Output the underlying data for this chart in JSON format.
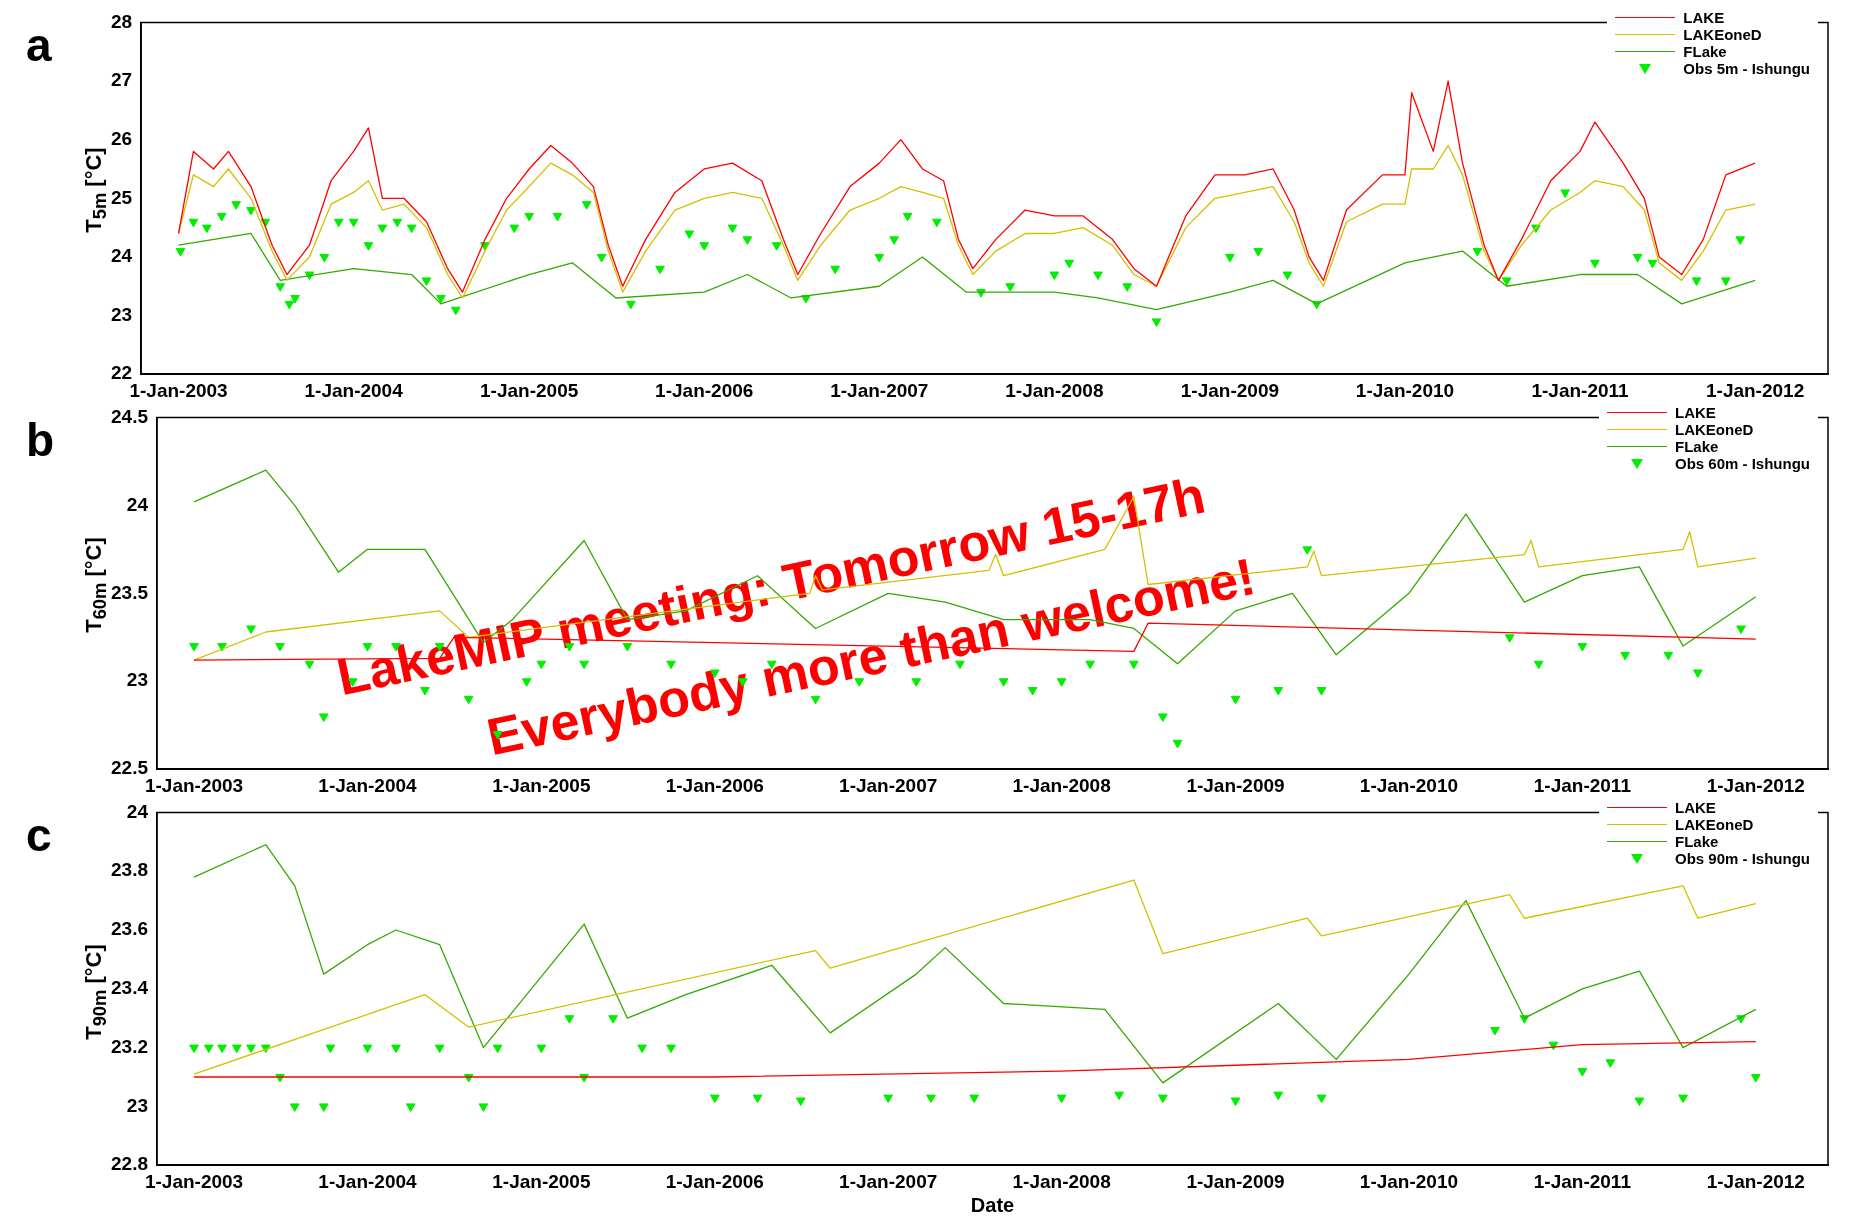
{
  "chart_data": [
    {
      "type": "line",
      "title": "a",
      "ylabel": "T$_{5m}$ [°C]",
      "xlim": [
        "2002-10-15",
        "2012-06-01"
      ],
      "ylim": [
        22,
        28
      ],
      "yticks": [
        22,
        23,
        24,
        25,
        26,
        27,
        28
      ],
      "xticks": [
        {
          "value": "2003-01-01",
          "label": "1-Jan-2003"
        },
        {
          "value": "2004-01-01",
          "label": "1-Jan-2004"
        },
        {
          "value": "2005-01-01",
          "label": "1-Jan-2005"
        },
        {
          "value": "2006-01-01",
          "label": "1-Jan-2006"
        },
        {
          "value": "2007-01-01",
          "label": "1-Jan-2007"
        },
        {
          "value": "2008-01-01",
          "label": "1-Jan-2008"
        },
        {
          "value": "2009-01-01",
          "label": "1-Jan-2009"
        },
        {
          "value": "2010-01-01",
          "label": "1-Jan-2010"
        },
        {
          "value": "2011-01-01",
          "label": "1-Jan-2011"
        },
        {
          "value": "2012-01-01",
          "label": "1-Jan-2012"
        }
      ],
      "legend": "top right",
      "grid": false,
      "series": [
        {
          "name": "LAKE",
          "color": "#ff0000",
          "x": [
            "2003-01-01",
            "2003-02-01",
            "2003-03-15",
            "2003-04-15",
            "2003-06-01",
            "2003-07-15",
            "2003-08-15",
            "2003-10-01",
            "2003-11-15",
            "2004-01-01",
            "2004-02-01",
            "2004-03-01",
            "2004-04-15",
            "2004-06-01",
            "2004-07-15",
            "2004-08-15",
            "2004-10-01",
            "2004-11-15",
            "2005-01-01",
            "2005-02-15",
            "2005-04-01",
            "2005-05-15",
            "2005-06-15",
            "2005-07-15",
            "2005-09-01",
            "2005-11-01",
            "2006-01-01",
            "2006-03-01",
            "2006-05-01",
            "2006-06-15",
            "2006-07-15",
            "2006-09-01",
            "2006-11-01",
            "2007-01-01",
            "2007-02-15",
            "2007-04-01",
            "2007-05-15",
            "2007-06-15",
            "2007-07-15",
            "2007-09-01",
            "2007-11-01",
            "2008-01-01",
            "2008-03-01",
            "2008-05-01",
            "2008-06-15",
            "2008-08-01",
            "2008-10-01",
            "2008-12-01",
            "2009-02-01",
            "2009-04-01",
            "2009-05-15",
            "2009-06-15",
            "2009-07-15",
            "2009-09-01",
            "2009-11-15",
            "2010-01-01",
            "2010-01-15",
            "2010-03-01",
            "2010-04-01",
            "2010-05-01",
            "2010-06-15",
            "2010-07-15",
            "2010-09-01",
            "2010-11-01",
            "2011-01-01",
            "2011-02-01",
            "2011-04-01",
            "2011-05-15",
            "2011-06-15",
            "2011-08-01",
            "2011-09-15",
            "2011-11-01",
            "2012-01-01"
          ],
          "values": [
            24.4,
            25.8,
            25.5,
            25.8,
            25.2,
            24.2,
            23.7,
            24.2,
            25.3,
            25.8,
            26.2,
            25.0,
            25.0,
            24.6,
            23.8,
            23.4,
            24.3,
            25.0,
            25.5,
            25.9,
            25.6,
            25.2,
            24.2,
            23.5,
            24.3,
            25.1,
            25.5,
            25.6,
            25.3,
            24.3,
            23.7,
            24.4,
            25.2,
            25.6,
            26.0,
            25.5,
            25.3,
            24.3,
            23.8,
            24.3,
            24.8,
            24.7,
            24.7,
            24.3,
            23.8,
            23.5,
            24.7,
            25.4,
            25.4,
            25.5,
            24.8,
            24.0,
            23.6,
            24.8,
            25.4,
            25.4,
            26.8,
            25.8,
            27.0,
            25.6,
            24.2,
            23.6,
            24.3,
            25.3,
            25.8,
            26.3,
            25.6,
            25.0,
            24.0,
            23.7,
            24.3,
            25.4,
            25.6
          ]
        },
        {
          "name": "LAKEoneD",
          "color": "#d4c000",
          "x": [
            "2003-01-01",
            "2003-02-01",
            "2003-03-15",
            "2003-04-15",
            "2003-06-01",
            "2003-07-15",
            "2003-08-15",
            "2003-10-01",
            "2003-11-15",
            "2004-01-01",
            "2004-02-01",
            "2004-03-01",
            "2004-04-15",
            "2004-06-01",
            "2004-07-15",
            "2004-08-15",
            "2004-10-01",
            "2004-11-15",
            "2005-01-01",
            "2005-02-15",
            "2005-04-01",
            "2005-05-15",
            "2005-06-15",
            "2005-07-15",
            "2005-09-01",
            "2005-11-01",
            "2006-01-01",
            "2006-03-01",
            "2006-05-01",
            "2006-06-15",
            "2006-07-15",
            "2006-09-01",
            "2006-11-01",
            "2007-01-01",
            "2007-02-15",
            "2007-04-01",
            "2007-05-15",
            "2007-06-15",
            "2007-07-15",
            "2007-09-01",
            "2007-11-01",
            "2008-01-01",
            "2008-03-01",
            "2008-05-01",
            "2008-06-15",
            "2008-08-01",
            "2008-10-01",
            "2008-12-01",
            "2009-02-01",
            "2009-04-01",
            "2009-05-15",
            "2009-06-15",
            "2009-07-15",
            "2009-09-01",
            "2009-11-15",
            "2010-01-01",
            "2010-01-15",
            "2010-03-01",
            "2010-04-01",
            "2010-05-01",
            "2010-06-15",
            "2010-07-15",
            "2010-09-01",
            "2010-11-01",
            "2011-01-01",
            "2011-02-01",
            "2011-04-01",
            "2011-05-15",
            "2011-06-15",
            "2011-08-01",
            "2011-09-15",
            "2011-11-01",
            "2012-01-01"
          ],
          "values": [
            24.4,
            25.4,
            25.2,
            25.5,
            25.0,
            24.1,
            23.6,
            24.0,
            24.9,
            25.1,
            25.3,
            24.8,
            24.9,
            24.5,
            23.7,
            23.3,
            24.1,
            24.8,
            25.2,
            25.6,
            25.4,
            25.1,
            24.1,
            23.4,
            24.1,
            24.8,
            25.0,
            25.1,
            25.0,
            24.2,
            23.6,
            24.2,
            24.8,
            25.0,
            25.2,
            25.1,
            25.0,
            24.2,
            23.7,
            24.1,
            24.4,
            24.4,
            24.5,
            24.2,
            23.7,
            23.5,
            24.5,
            25.0,
            25.1,
            25.2,
            24.6,
            23.9,
            23.5,
            24.6,
            24.9,
            24.9,
            25.5,
            25.5,
            25.9,
            25.4,
            24.1,
            23.6,
            24.2,
            24.8,
            25.1,
            25.3,
            25.2,
            24.8,
            23.9,
            23.6,
            24.1,
            24.8,
            24.9
          ]
        },
        {
          "name": "FLake",
          "color": "#33aa00",
          "x": [
            "2003-01-01",
            "2003-06-01",
            "2003-08-01",
            "2004-01-01",
            "2004-05-01",
            "2004-07-01",
            "2005-01-01",
            "2005-04-01",
            "2005-07-01",
            "2006-01-01",
            "2006-04-01",
            "2006-07-01",
            "2007-01-01",
            "2007-04-01",
            "2007-07-01",
            "2008-01-01",
            "2008-04-01",
            "2008-08-01",
            "2009-01-01",
            "2009-04-01",
            "2009-07-01",
            "2010-01-01",
            "2010-05-01",
            "2010-08-01",
            "2011-01-01",
            "2011-05-01",
            "2011-08-01",
            "2012-01-01"
          ],
          "values": [
            24.2,
            24.4,
            23.6,
            23.8,
            23.7,
            23.2,
            23.7,
            23.9,
            23.3,
            23.4,
            23.7,
            23.3,
            23.5,
            24.0,
            23.4,
            23.4,
            23.3,
            23.1,
            23.4,
            23.6,
            23.2,
            23.9,
            24.1,
            23.5,
            23.7,
            23.7,
            23.2,
            23.6
          ]
        },
        {
          "name": "Obs 5m - Ishungu",
          "type": "scatter",
          "marker": "triangle",
          "color": "#00ee00",
          "x": [
            "2003-01-05",
            "2003-02-01",
            "2003-03-01",
            "2003-04-01",
            "2003-05-01",
            "2003-06-01",
            "2003-07-01",
            "2003-08-01",
            "2003-08-20",
            "2003-09-01",
            "2003-10-01",
            "2003-11-01",
            "2003-12-01",
            "2004-01-01",
            "2004-02-01",
            "2004-03-01",
            "2004-04-01",
            "2004-05-01",
            "2004-06-01",
            "2004-07-01",
            "2004-08-01",
            "2004-10-01",
            "2004-12-01",
            "2005-01-01",
            "2005-03-01",
            "2005-05-01",
            "2005-06-01",
            "2005-08-01",
            "2005-10-01",
            "2005-12-01",
            "2006-01-01",
            "2006-03-01",
            "2006-04-01",
            "2006-06-01",
            "2006-08-01",
            "2006-10-01",
            "2007-01-01",
            "2007-02-01",
            "2007-03-01",
            "2007-05-01",
            "2007-08-01",
            "2007-10-01",
            "2008-01-01",
            "2008-02-01",
            "2008-04-01",
            "2008-06-01",
            "2008-08-01",
            "2009-01-01",
            "2009-03-01",
            "2009-05-01",
            "2009-07-01",
            "2010-06-01",
            "2010-08-01",
            "2010-10-01",
            "2010-12-01",
            "2011-02-01",
            "2011-05-01",
            "2011-06-01",
            "2011-09-01",
            "2011-11-01",
            "2011-12-01"
          ],
          "values": [
            24.1,
            24.6,
            24.5,
            24.7,
            24.9,
            24.8,
            24.6,
            23.5,
            23.2,
            23.3,
            23.7,
            24.0,
            24.6,
            24.6,
            24.2,
            24.5,
            24.6,
            24.5,
            23.6,
            23.3,
            23.1,
            24.2,
            24.5,
            24.7,
            24.7,
            24.9,
            24.0,
            23.2,
            23.8,
            24.4,
            24.2,
            24.5,
            24.3,
            24.2,
            23.3,
            23.8,
            24.0,
            24.3,
            24.7,
            24.6,
            23.4,
            23.5,
            23.7,
            23.9,
            23.7,
            23.5,
            22.9,
            24.0,
            24.1,
            23.7,
            23.2,
            24.1,
            23.6,
            24.5,
            25.1,
            23.9,
            24.0,
            23.9,
            23.6,
            23.6,
            24.3
          ]
        }
      ]
    },
    {
      "type": "line",
      "title": "b",
      "ylabel": "T$_{60m}$ [°C]",
      "xlim": [
        "2002-10-15",
        "2012-06-01"
      ],
      "ylim": [
        22.5,
        24.5
      ],
      "yticks": [
        22.5,
        23,
        23.5,
        24,
        24.5
      ],
      "xticks": [
        {
          "value": "2003-01-01",
          "label": "1-Jan-2003"
        },
        {
          "value": "2004-01-01",
          "label": "1-Jan-2004"
        },
        {
          "value": "2005-01-01",
          "label": "1-Jan-2005"
        },
        {
          "value": "2006-01-01",
          "label": "1-Jan-2006"
        },
        {
          "value": "2007-01-01",
          "label": "1-Jan-2007"
        },
        {
          "value": "2008-01-01",
          "label": "1-Jan-2008"
        },
        {
          "value": "2009-01-01",
          "label": "1-Jan-2009"
        },
        {
          "value": "2010-01-01",
          "label": "1-Jan-2010"
        },
        {
          "value": "2011-01-01",
          "label": "1-Jan-2011"
        },
        {
          "value": "2012-01-01",
          "label": "1-Jan-2012"
        }
      ],
      "legend": "top right",
      "grid": false,
      "annotations": [
        "LakeMIP meeting: Tomorrow 15-17h",
        "Everybody more than welcome!"
      ],
      "series": [
        {
          "name": "LAKE",
          "color": "#ff0000",
          "x": [
            "2003-01-01",
            "2004-06-01",
            "2004-07-01",
            "2008-06-01",
            "2008-07-01",
            "2012-01-01"
          ],
          "values": [
            23.12,
            23.13,
            23.25,
            23.17,
            23.33,
            23.24
          ]
        },
        {
          "name": "LAKEoneD",
          "color": "#d4c000",
          "x": [
            "2003-01-01",
            "2003-06-01",
            "2004-06-01",
            "2004-08-01",
            "2006-07-20",
            "2006-08-01",
            "2006-08-15",
            "2007-08-01",
            "2007-08-15",
            "2007-09-01",
            "2008-04-01",
            "2008-06-01",
            "2008-07-01",
            "2009-06-01",
            "2009-06-15",
            "2009-07-01",
            "2010-09-01",
            "2010-09-15",
            "2010-10-01",
            "2011-08-01",
            "2011-08-15",
            "2011-09-01",
            "2012-01-01"
          ],
          "values": [
            23.12,
            23.28,
            23.4,
            23.25,
            23.5,
            23.6,
            23.52,
            23.63,
            23.72,
            23.6,
            23.75,
            24.05,
            23.55,
            23.65,
            23.74,
            23.6,
            23.72,
            23.8,
            23.65,
            23.75,
            23.85,
            23.65,
            23.7
          ]
        },
        {
          "name": "FLake",
          "color": "#33aa00",
          "x": [
            "2003-01-01",
            "2003-06-01",
            "2003-08-01",
            "2003-11-01",
            "2004-01-01",
            "2004-05-01",
            "2004-09-01",
            "2004-11-01",
            "2005-04-01",
            "2005-07-01",
            "2005-11-01",
            "2006-04-01",
            "2006-08-01",
            "2007-01-01",
            "2007-05-01",
            "2007-09-01",
            "2008-03-01",
            "2008-06-01",
            "2008-09-01",
            "2009-01-01",
            "2009-05-01",
            "2009-08-01",
            "2010-01-01",
            "2010-05-01",
            "2010-09-01",
            "2011-01-01",
            "2011-05-01",
            "2011-08-01",
            "2012-01-01"
          ],
          "values": [
            24.02,
            24.2,
            24.0,
            23.62,
            23.75,
            23.75,
            23.22,
            23.35,
            23.8,
            23.35,
            23.4,
            23.6,
            23.3,
            23.5,
            23.45,
            23.35,
            23.35,
            23.3,
            23.1,
            23.4,
            23.5,
            23.15,
            23.5,
            23.95,
            23.45,
            23.6,
            23.65,
            23.2,
            23.48
          ]
        },
        {
          "name": "Obs 60m - Ishungu",
          "type": "scatter",
          "marker": "triangle",
          "color": "#00ee00",
          "x": [
            "2003-01-01",
            "2003-03-01",
            "2003-05-01",
            "2003-07-01",
            "2003-09-01",
            "2003-10-01",
            "2003-12-01",
            "2004-01-01",
            "2004-03-01",
            "2004-05-01",
            "2004-06-01",
            "2004-08-01",
            "2004-10-01",
            "2004-12-01",
            "2005-01-01",
            "2005-03-01",
            "2005-04-01",
            "2005-07-01",
            "2005-10-01",
            "2006-01-01",
            "2006-03-01",
            "2006-05-01",
            "2006-08-01",
            "2006-11-01",
            "2007-03-01",
            "2007-06-01",
            "2007-09-01",
            "2007-11-01",
            "2008-01-01",
            "2008-03-01",
            "2008-06-01",
            "2008-08-01",
            "2008-09-01",
            "2009-01-01",
            "2009-04-01",
            "2009-06-01",
            "2009-07-01",
            "2010-08-01",
            "2010-10-01",
            "2011-01-01",
            "2011-04-01",
            "2011-07-01",
            "2011-09-01",
            "2011-12-01"
          ],
          "values": [
            23.2,
            23.2,
            23.3,
            23.2,
            23.1,
            22.8,
            23.0,
            23.2,
            23.2,
            22.95,
            23.2,
            22.9,
            22.7,
            23.0,
            23.1,
            23.2,
            23.1,
            23.2,
            23.1,
            23.05,
            23.0,
            23.1,
            22.9,
            23.0,
            23.0,
            23.1,
            23.0,
            22.95,
            23.0,
            23.1,
            23.1,
            22.8,
            22.65,
            22.9,
            22.95,
            23.75,
            22.95,
            23.25,
            23.1,
            23.2,
            23.15,
            23.15,
            23.05,
            23.3
          ]
        }
      ]
    },
    {
      "type": "line",
      "title": "c",
      "ylabel": "T$_{90m}$ [°C]",
      "xlabel": "Date",
      "xlim": [
        "2002-10-15",
        "2012-06-01"
      ],
      "ylim": [
        22.8,
        24
      ],
      "yticks": [
        22.8,
        23,
        23.2,
        23.4,
        23.6,
        23.8,
        24
      ],
      "xticks": [
        {
          "value": "2003-01-01",
          "label": "1-Jan-2003"
        },
        {
          "value": "2004-01-01",
          "label": "1-Jan-2004"
        },
        {
          "value": "2005-01-01",
          "label": "1-Jan-2005"
        },
        {
          "value": "2006-01-01",
          "label": "1-Jan-2006"
        },
        {
          "value": "2007-01-01",
          "label": "1-Jan-2007"
        },
        {
          "value": "2008-01-01",
          "label": "1-Jan-2008"
        },
        {
          "value": "2009-01-01",
          "label": "1-Jan-2009"
        },
        {
          "value": "2010-01-01",
          "label": "1-Jan-2010"
        },
        {
          "value": "2011-01-01",
          "label": "1-Jan-2011"
        },
        {
          "value": "2012-01-01",
          "label": "1-Jan-2012"
        }
      ],
      "legend": "top right",
      "grid": false,
      "series": [
        {
          "name": "LAKE",
          "color": "#ff0000",
          "x": [
            "2003-01-01",
            "2006-01-01",
            "2008-01-01",
            "2010-01-01",
            "2011-01-01",
            "2012-01-01"
          ],
          "values": [
            23.1,
            23.1,
            23.12,
            23.16,
            23.21,
            23.22
          ]
        },
        {
          "name": "LAKEoneD",
          "color": "#d4c000",
          "x": [
            "2003-01-01",
            "2004-05-01",
            "2004-08-01",
            "2006-08-01",
            "2006-09-01",
            "2008-06-01",
            "2008-08-01",
            "2009-06-01",
            "2009-07-01",
            "2010-08-01",
            "2010-09-01",
            "2011-08-01",
            "2011-09-01",
            "2012-01-01"
          ],
          "values": [
            23.11,
            23.38,
            23.27,
            23.53,
            23.47,
            23.77,
            23.52,
            23.64,
            23.58,
            23.72,
            23.64,
            23.75,
            23.64,
            23.69
          ]
        },
        {
          "name": "FLake",
          "color": "#33aa00",
          "x": [
            "2003-01-01",
            "2003-06-01",
            "2003-08-01",
            "2003-10-01",
            "2004-01-01",
            "2004-03-01",
            "2004-06-01",
            "2004-09-01",
            "2005-04-01",
            "2005-07-01",
            "2005-11-01",
            "2006-05-01",
            "2006-09-01",
            "2007-03-01",
            "2007-05-01",
            "2007-09-01",
            "2008-04-01",
            "2008-08-01",
            "2009-04-01",
            "2009-08-01",
            "2010-01-01",
            "2010-05-01",
            "2010-09-01",
            "2011-01-01",
            "2011-05-01",
            "2011-08-01",
            "2012-01-01"
          ],
          "values": [
            23.78,
            23.89,
            23.75,
            23.45,
            23.55,
            23.6,
            23.55,
            23.2,
            23.62,
            23.3,
            23.38,
            23.48,
            23.25,
            23.45,
            23.54,
            23.35,
            23.33,
            23.08,
            23.35,
            23.16,
            23.45,
            23.7,
            23.3,
            23.4,
            23.46,
            23.2,
            23.33
          ]
        },
        {
          "name": "Obs 90m - Ishungu",
          "type": "scatter",
          "marker": "triangle",
          "color": "#00ee00",
          "x": [
            "2003-01-01",
            "2003-02-01",
            "2003-03-01",
            "2003-04-01",
            "2003-05-01",
            "2003-06-01",
            "2003-07-01",
            "2003-08-01",
            "2003-10-01",
            "2003-10-15",
            "2004-01-01",
            "2004-03-01",
            "2004-04-01",
            "2004-06-01",
            "2004-08-01",
            "2004-09-01",
            "2004-10-01",
            "2005-01-01",
            "2005-03-01",
            "2005-04-01",
            "2005-06-01",
            "2005-08-01",
            "2005-10-01",
            "2006-01-01",
            "2006-04-01",
            "2006-07-01",
            "2007-01-01",
            "2007-04-01",
            "2007-07-01",
            "2008-01-01",
            "2008-05-01",
            "2008-08-01",
            "2009-01-01",
            "2009-04-01",
            "2009-07-01",
            "2010-07-01",
            "2010-09-01",
            "2010-11-01",
            "2011-01-01",
            "2011-03-01",
            "2011-05-01",
            "2011-08-01",
            "2011-12-01",
            "2012-01-01"
          ],
          "values": [
            23.2,
            23.2,
            23.2,
            23.2,
            23.2,
            23.2,
            23.1,
            23.0,
            23.0,
            23.2,
            23.2,
            23.2,
            23.0,
            23.2,
            23.1,
            23.0,
            23.2,
            23.2,
            23.3,
            23.1,
            23.3,
            23.2,
            23.2,
            23.03,
            23.03,
            23.02,
            23.03,
            23.03,
            23.03,
            23.03,
            23.04,
            23.03,
            23.02,
            23.04,
            23.03,
            23.26,
            23.3,
            23.21,
            23.12,
            23.15,
            23.02,
            23.03,
            23.3,
            23.1
          ]
        }
      ]
    }
  ]
}
